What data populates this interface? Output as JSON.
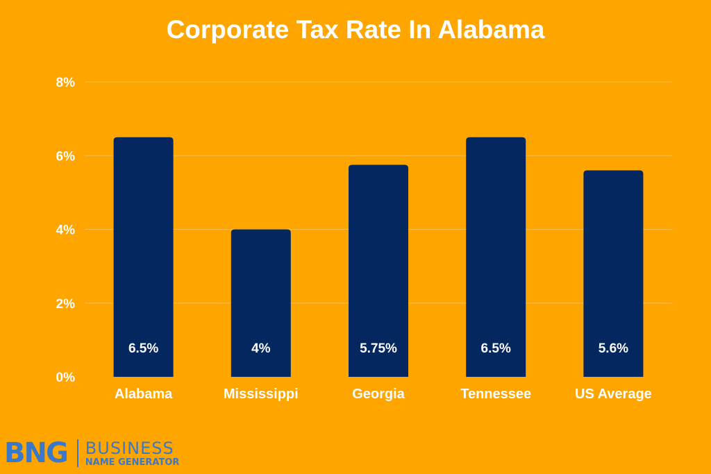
{
  "chart_data": {
    "type": "bar",
    "title": "Corporate Tax Rate In Alabama",
    "categories": [
      "Alabama",
      "Mississippi",
      "Georgia",
      "Tennessee",
      "US Average"
    ],
    "values": [
      6.5,
      4,
      5.75,
      6.5,
      5.6
    ],
    "data_labels": [
      "6.5%",
      "4%",
      "5.75%",
      "6.5%",
      "5.6%"
    ],
    "y_ticks": [
      0,
      2,
      4,
      6,
      8
    ],
    "y_tick_labels": [
      "0%",
      "2%",
      "4%",
      "6%",
      "8%"
    ],
    "ylim": [
      0,
      8
    ],
    "xlabel": "",
    "ylabel": "",
    "grid": true,
    "legend": "none"
  },
  "colors": {
    "background": "#FFA500",
    "bar": "#04275F",
    "text": "#FFFFFF",
    "brand": "#3A78C9"
  },
  "logo": {
    "mark": "BNG",
    "line1": "BUSINESS",
    "line2": "NAME GENERATOR"
  }
}
